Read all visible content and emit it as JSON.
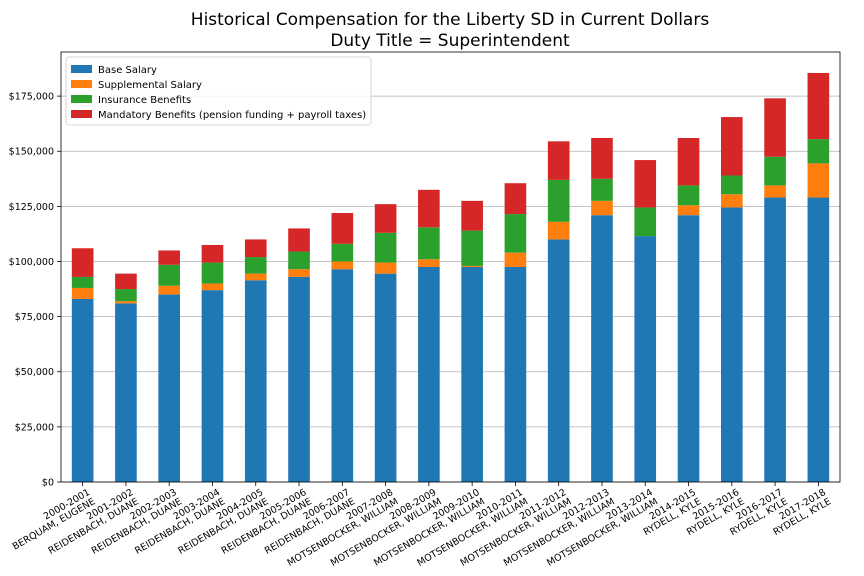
{
  "chart_data": {
    "type": "bar",
    "stacked": true,
    "title": "Historical Compensation for the Liberty SD in Current Dollars",
    "subtitle": "Duty Title = Superintendent",
    "xlabel": "",
    "ylabel": "",
    "ylim": [
      0,
      195000
    ],
    "yticks": [
      0,
      25000,
      50000,
      75000,
      100000,
      125000,
      150000,
      175000
    ],
    "ytick_labels": [
      "$0",
      "$25,000",
      "$50,000",
      "$75,000",
      "$100,000",
      "$125,000",
      "$150,000",
      "$175,000"
    ],
    "grid": "horizontal",
    "legend_position": "top-left",
    "categories": [
      [
        "2000-2001",
        "BERQUAM, EUGENE"
      ],
      [
        "2001-2002",
        "REIDENBACH, DUANE"
      ],
      [
        "2002-2003",
        "REIDENBACH, DUANE"
      ],
      [
        "2003-2004",
        "REIDENBACH, DUANE"
      ],
      [
        "2004-2005",
        "REIDENBACH, DUANE"
      ],
      [
        "2005-2006",
        "REIDENBACH, DUANE"
      ],
      [
        "2006-2007",
        "REIDENBACH, DUANE"
      ],
      [
        "2007-2008",
        "MOTSENBOCKER, WILLIAM"
      ],
      [
        "2008-2009",
        "MOTSENBOCKER, WILLIAM"
      ],
      [
        "2009-2010",
        "MOTSENBOCKER, WILLIAM"
      ],
      [
        "2010-2011",
        "MOTSENBOCKER, WILLIAM"
      ],
      [
        "2011-2012",
        "MOTSENBOCKER, WILLIAM"
      ],
      [
        "2012-2013",
        "MOTSENBOCKER, WILLIAM"
      ],
      [
        "2013-2014",
        "MOTSENBOCKER, WILLIAM"
      ],
      [
        "2014-2015",
        "RYDELL, KYLE"
      ],
      [
        "2015-2016",
        "RYDELL, KYLE"
      ],
      [
        "2016-2017",
        "RYDELL, KYLE"
      ],
      [
        "2017-2018",
        "RYDELL, KYLE"
      ]
    ],
    "series": [
      {
        "name": "Base Salary",
        "color": "#1f77b4",
        "values": [
          83000,
          81000,
          85000,
          87000,
          91500,
          93000,
          96500,
          94500,
          97500,
          97500,
          97500,
          110000,
          121000,
          111500,
          121000,
          124500,
          129000,
          129000
        ]
      },
      {
        "name": "Supplemental Salary",
        "color": "#ff7f0e",
        "values": [
          5000,
          1000,
          4000,
          3000,
          3000,
          3500,
          3500,
          5000,
          3500,
          500,
          6500,
          8000,
          6500,
          0,
          4500,
          6000,
          5500,
          15500
        ]
      },
      {
        "name": "Insurance Benefits",
        "color": "#2ca02c",
        "values": [
          5000,
          5500,
          9500,
          9500,
          7500,
          8000,
          8000,
          13500,
          14500,
          16000,
          17500,
          19000,
          10000,
          13000,
          9000,
          8500,
          13000,
          11000
        ]
      },
      {
        "name": "Mandatory Benefits (pension funding + payroll taxes)",
        "color": "#d62728",
        "values": [
          13000,
          7000,
          6500,
          8000,
          8000,
          10500,
          14000,
          13000,
          17000,
          13500,
          14000,
          17500,
          18500,
          21500,
          21500,
          26500,
          26500,
          30000
        ]
      }
    ]
  }
}
